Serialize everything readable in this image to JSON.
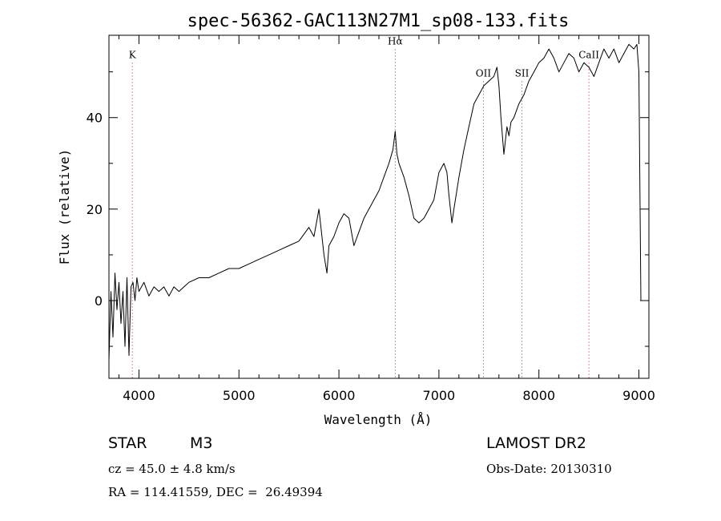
{
  "chart_data": {
    "type": "line",
    "title": "spec-56362-GAC113N27M1_sp08-133.fits",
    "xlabel": "Wavelength (Å)",
    "ylabel": "Flux (relative)",
    "xlim": [
      3700,
      9100
    ],
    "ylim": [
      -17,
      58
    ],
    "x_ticks": [
      4000,
      5000,
      6000,
      7000,
      8000,
      9000
    ],
    "y_ticks": [
      0,
      20,
      40
    ],
    "grid": false,
    "line_color": "#000000",
    "marker_color": "#ff0000",
    "line_markers": [
      {
        "label": "K",
        "x": 3934,
        "label_y": 53
      },
      {
        "label": "Hα",
        "x": 6563,
        "label_y": 56
      },
      {
        "label": "OII",
        "x": 7445,
        "label_y": 49
      },
      {
        "label": "SII",
        "x": 7830,
        "label_y": 49
      },
      {
        "label": "CaII",
        "x": 8500,
        "label_y": 53
      }
    ],
    "series": [
      {
        "x": [
          3700,
          3720,
          3740,
          3760,
          3780,
          3800,
          3820,
          3840,
          3860,
          3880,
          3900,
          3920,
          3940,
          3960,
          3980,
          4000,
          4050,
          4100,
          4150,
          4200,
          4250,
          4300,
          4350,
          4400,
          4450,
          4500,
          4600,
          4700,
          4800,
          4900,
          5000,
          5100,
          5200,
          5300,
          5400,
          5500,
          5600,
          5700,
          5750,
          5800,
          5850,
          5880,
          5900,
          5950,
          6000,
          6050,
          6100,
          6150,
          6200,
          6250,
          6300,
          6350,
          6400,
          6450,
          6500,
          6540,
          6563,
          6580,
          6600,
          6650,
          6700,
          6750,
          6800,
          6850,
          6900,
          6950,
          7000,
          7050,
          7080,
          7100,
          7130,
          7150,
          7200,
          7250,
          7300,
          7350,
          7400,
          7450,
          7500,
          7550,
          7580,
          7600,
          7620,
          7650,
          7680,
          7700,
          7720,
          7750,
          7800,
          7850,
          7900,
          7950,
          8000,
          8050,
          8100,
          8150,
          8200,
          8250,
          8300,
          8350,
          8400,
          8450,
          8500,
          8550,
          8600,
          8650,
          8700,
          8750,
          8800,
          8850,
          8900,
          8950,
          8980,
          9000,
          9020
        ],
        "y": [
          -13,
          2,
          -8,
          6,
          -2,
          4,
          -5,
          2,
          -10,
          5,
          -12,
          3,
          4,
          0,
          5,
          2,
          4,
          1,
          3,
          2,
          3,
          1,
          3,
          2,
          3,
          4,
          5,
          5,
          6,
          7,
          7,
          8,
          9,
          10,
          11,
          12,
          13,
          16,
          14,
          20,
          10,
          6,
          12,
          14,
          17,
          19,
          18,
          12,
          15,
          18,
          20,
          22,
          24,
          27,
          30,
          33,
          37,
          32,
          30,
          27,
          23,
          18,
          17,
          18,
          20,
          22,
          28,
          30,
          28,
          23,
          17,
          20,
          27,
          33,
          38,
          43,
          45,
          47,
          48,
          49,
          51,
          47,
          40,
          32,
          38,
          36,
          39,
          40,
          43,
          45,
          48,
          50,
          52,
          53,
          55,
          53,
          50,
          52,
          54,
          53,
          50,
          52,
          51,
          49,
          52,
          55,
          53,
          55,
          52,
          54,
          56,
          55,
          56,
          50,
          0
        ]
      }
    ]
  },
  "info": {
    "object_class": "STAR",
    "subclass": "M3",
    "release": "LAMOST DR2",
    "cz_text": "cz = 45.0 ± 4.8 km/s",
    "obs_date_text": "Obs-Date: 20130310",
    "coords_text": "RA = 114.41559, DEC =  26.49394"
  }
}
